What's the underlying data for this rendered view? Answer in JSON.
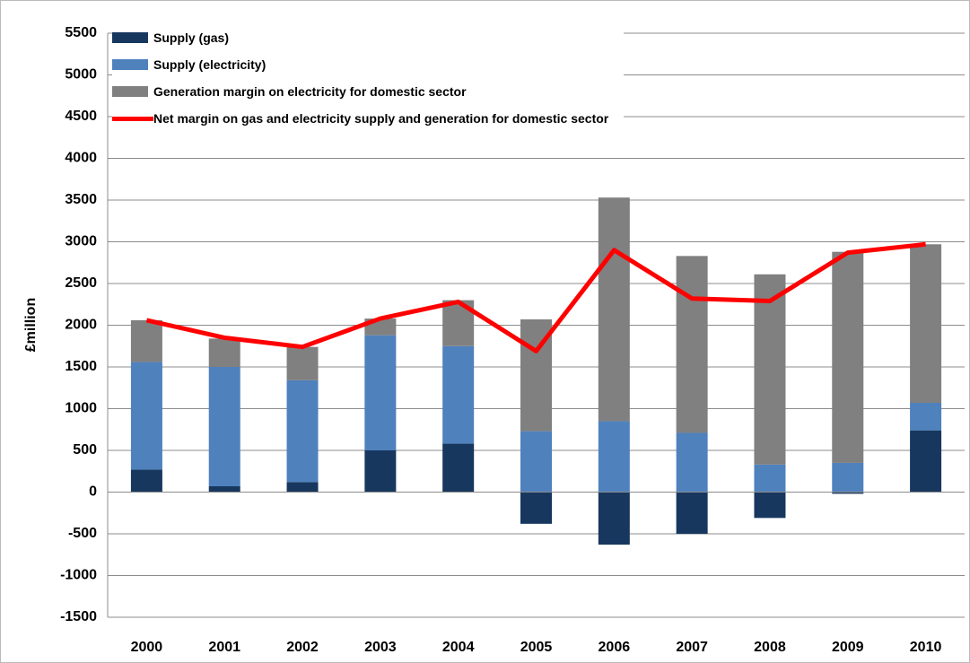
{
  "chart_data": {
    "type": "bar",
    "stacked": true,
    "y_label": "£million",
    "categories": [
      "2000",
      "2001",
      "2002",
      "2003",
      "2004",
      "2005",
      "2006",
      "2007",
      "2008",
      "2009",
      "2010"
    ],
    "series": [
      {
        "name": "Supply (gas)",
        "type": "bar",
        "color": "#17375e",
        "values": [
          270,
          70,
          120,
          500,
          580,
          -380,
          -630,
          -500,
          -310,
          -20,
          740
        ]
      },
      {
        "name": "Supply (electricity)",
        "type": "bar",
        "color": "#4f81bd",
        "values": [
          1290,
          1430,
          1220,
          1380,
          1170,
          730,
          850,
          710,
          330,
          350,
          330
        ]
      },
      {
        "name": "Generation margin on electricity for domestic sector",
        "type": "bar",
        "color": "#808080",
        "values": [
          500,
          340,
          400,
          200,
          550,
          1340,
          2680,
          2120,
          2280,
          2530,
          1900
        ]
      },
      {
        "name": "Net margin on gas and electricity supply and generation for domestic sector",
        "type": "line",
        "color": "#ff0000",
        "values": [
          2060,
          1850,
          1740,
          2080,
          2280,
          1690,
          2900,
          2320,
          2290,
          2870,
          2970
        ]
      }
    ],
    "ylim": [
      -1500,
      5500
    ],
    "yticks": [
      -1500,
      -1000,
      -500,
      0,
      500,
      1000,
      1500,
      2000,
      2500,
      3000,
      3500,
      4000,
      4500,
      5000,
      5500
    ],
    "grid": true,
    "legend": "top-left"
  }
}
